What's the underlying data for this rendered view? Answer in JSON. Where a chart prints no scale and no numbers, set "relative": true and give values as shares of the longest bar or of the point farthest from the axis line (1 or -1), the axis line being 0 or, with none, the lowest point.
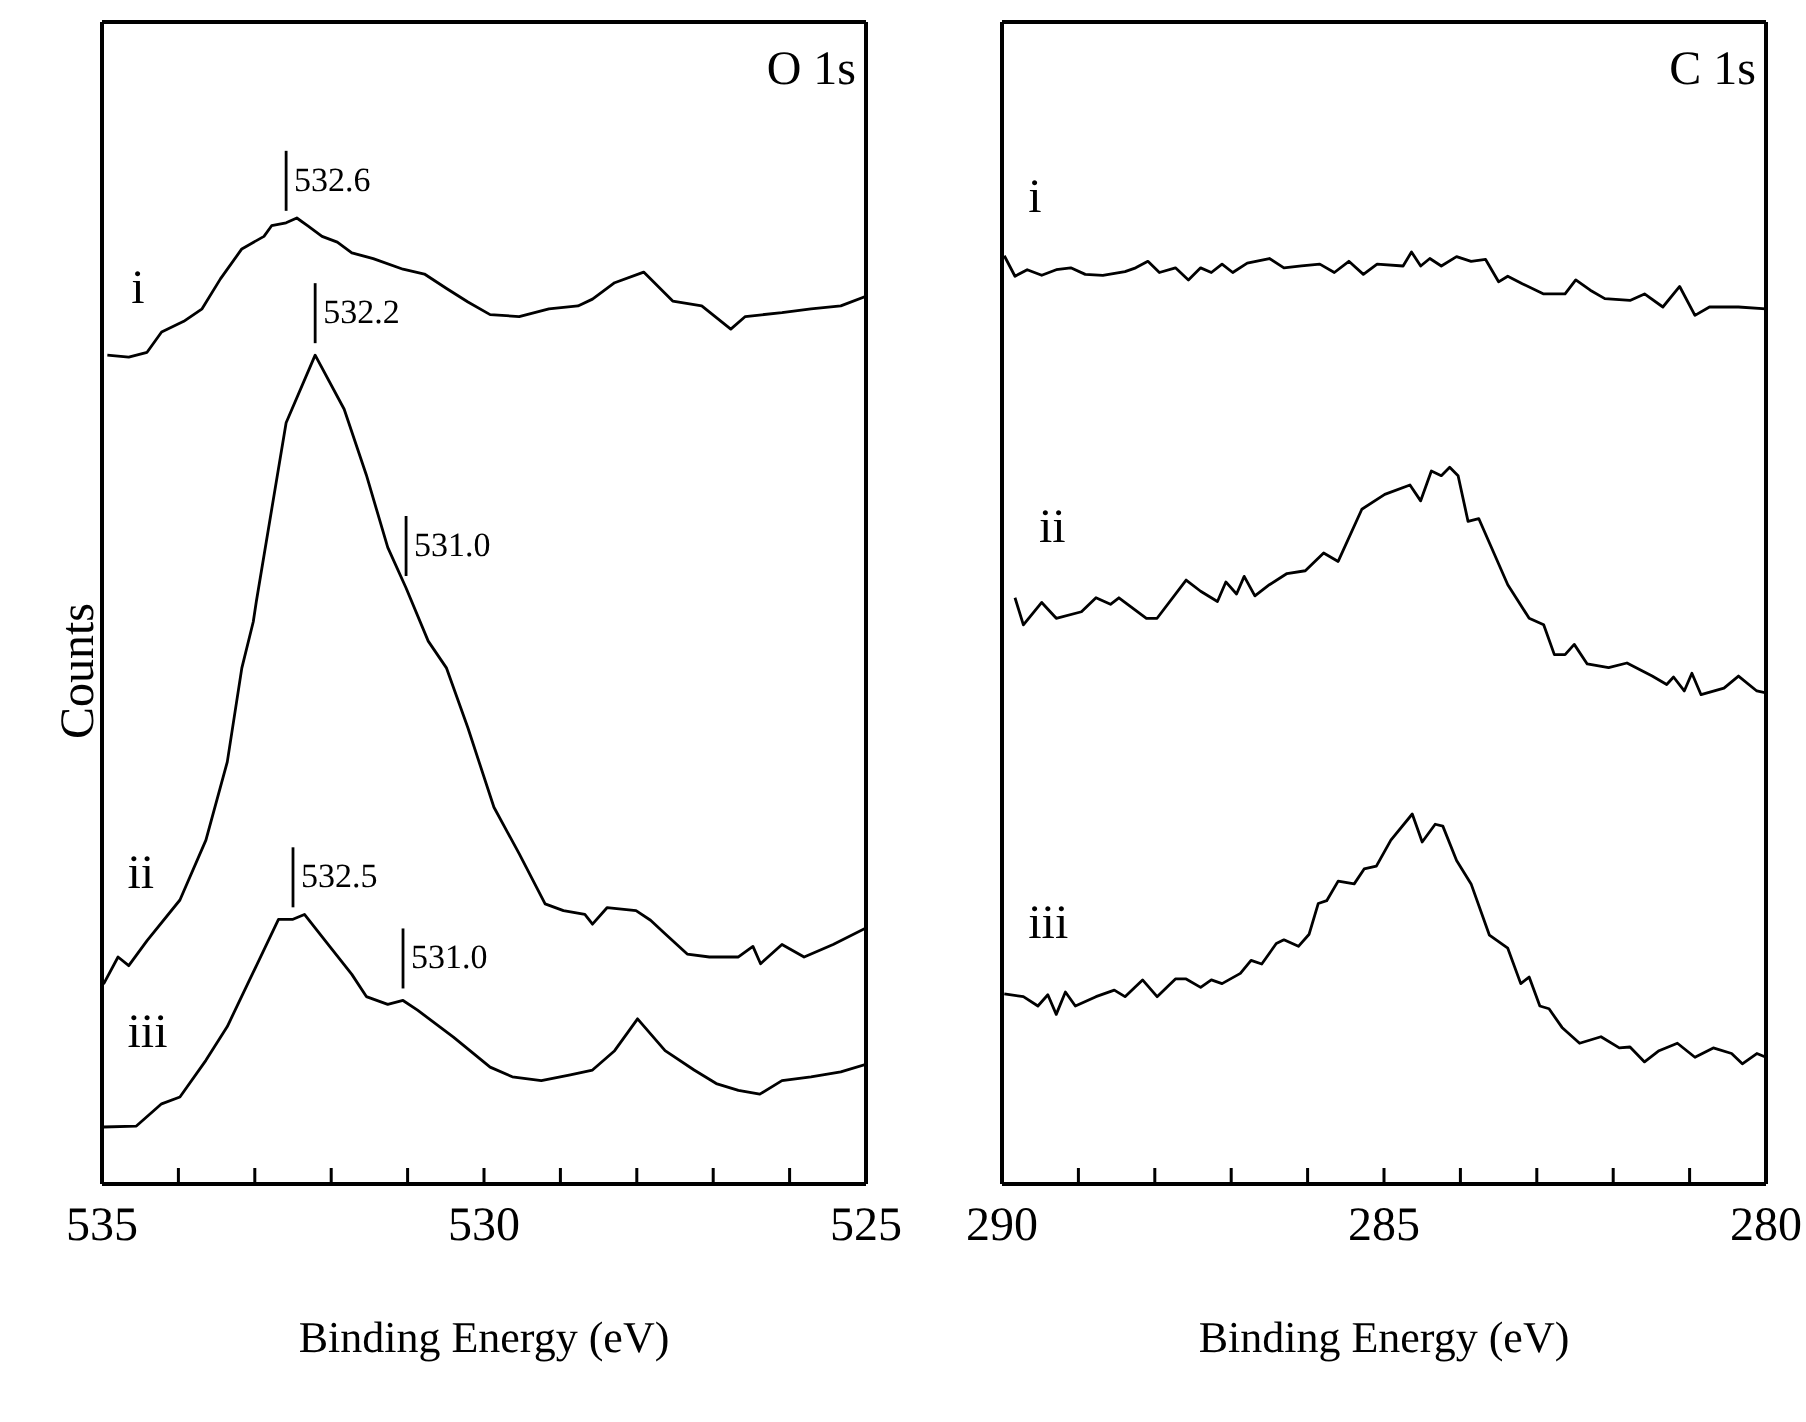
{
  "chart_data": [
    {
      "type": "line",
      "title": "O 1s",
      "xlabel": "Binding Energy (eV)",
      "ylabel": "Counts",
      "relative": true,
      "marker": "none",
      "xlim": [
        535,
        525
      ],
      "xticks": [
        535,
        {
          "value": 534,
          "label": null
        },
        {
          "value": 533,
          "label": null
        },
        {
          "value": 532,
          "label": null
        },
        {
          "value": 531,
          "label": null
        },
        530,
        {
          "value": 529,
          "label": null
        },
        {
          "value": 528,
          "label": null
        },
        {
          "value": 527,
          "label": null
        },
        {
          "value": 526,
          "label": null
        },
        525
      ],
      "annotations": [
        {
          "text": "532.6",
          "x": 532.59,
          "y": 0.995
        },
        {
          "text": "532.2",
          "x": 532.21,
          "y": 0.858
        },
        {
          "text": "531.0",
          "x": 531.02,
          "y": 0.617
        },
        {
          "text": "532.5",
          "x": 532.5,
          "y": 0.274
        },
        {
          "text": "531.0",
          "x": 531.06,
          "y": 0.19
        }
      ],
      "series": [
        {
          "name": "i",
          "color": "#000000",
          "x": [
            534.93,
            534.65,
            534.41,
            534.22,
            533.93,
            533.69,
            533.45,
            533.17,
            532.88,
            532.78,
            532.59,
            532.45,
            532.31,
            532.12,
            531.92,
            531.73,
            531.45,
            531.06,
            530.78,
            530.49,
            530.21,
            529.92,
            529.54,
            529.15,
            528.77,
            528.58,
            528.29,
            527.91,
            527.53,
            527.15,
            526.77,
            526.58,
            526.1,
            525.72,
            525.33,
            525.0
          ],
          "values": [
            0.858,
            0.856,
            0.861,
            0.882,
            0.893,
            0.906,
            0.937,
            0.968,
            0.981,
            0.992,
            0.995,
            1.0,
            0.992,
            0.981,
            0.975,
            0.964,
            0.958,
            0.947,
            0.942,
            0.927,
            0.913,
            0.9,
            0.898,
            0.906,
            0.909,
            0.916,
            0.933,
            0.944,
            0.914,
            0.909,
            0.885,
            0.898,
            0.902,
            0.906,
            0.909,
            0.919
          ]
        },
        {
          "name": "ii",
          "color": "#000000",
          "x": [
            534.98,
            534.79,
            534.65,
            534.41,
            533.98,
            533.64,
            533.36,
            533.17,
            533.02,
            532.98,
            532.59,
            532.21,
            531.83,
            531.54,
            531.26,
            531.02,
            530.73,
            530.49,
            530.21,
            529.87,
            529.54,
            529.2,
            528.96,
            528.68,
            528.58,
            528.39,
            528.01,
            527.82,
            527.63,
            527.34,
            527.05,
            526.67,
            526.48,
            526.38,
            526.1,
            525.81,
            525.43,
            525.0
          ],
          "values": [
            0.207,
            0.235,
            0.226,
            0.252,
            0.294,
            0.356,
            0.437,
            0.534,
            0.582,
            0.603,
            0.788,
            0.858,
            0.802,
            0.734,
            0.659,
            0.617,
            0.562,
            0.534,
            0.472,
            0.39,
            0.342,
            0.29,
            0.283,
            0.279,
            0.269,
            0.286,
            0.283,
            0.273,
            0.259,
            0.238,
            0.235,
            0.235,
            0.246,
            0.228,
            0.248,
            0.235,
            0.248,
            0.265
          ]
        },
        {
          "name": "iii",
          "color": "#000000",
          "x": [
            534.98,
            534.55,
            534.22,
            533.98,
            533.64,
            533.36,
            533.07,
            532.69,
            532.5,
            532.35,
            532.02,
            531.73,
            531.54,
            531.26,
            531.06,
            530.87,
            530.4,
            529.92,
            529.63,
            529.25,
            528.87,
            528.58,
            528.29,
            527.99,
            527.63,
            527.25,
            526.96,
            526.67,
            526.39,
            526.1,
            525.72,
            525.33,
            525.0
          ],
          "values": [
            0.059,
            0.06,
            0.083,
            0.09,
            0.128,
            0.163,
            0.211,
            0.274,
            0.274,
            0.279,
            0.246,
            0.217,
            0.194,
            0.186,
            0.19,
            0.18,
            0.152,
            0.121,
            0.111,
            0.107,
            0.113,
            0.118,
            0.138,
            0.171,
            0.138,
            0.118,
            0.104,
            0.097,
            0.093,
            0.107,
            0.111,
            0.116,
            0.124
          ]
        }
      ]
    },
    {
      "type": "line",
      "title": "C 1s",
      "xlabel": "Binding Energy (eV)",
      "relative": true,
      "marker": "none",
      "xlim": [
        290,
        280
      ],
      "xticks": [
        290,
        {
          "value": 289,
          "label": null
        },
        {
          "value": 288,
          "label": null
        },
        {
          "value": 287,
          "label": null
        },
        {
          "value": 286,
          "label": null
        },
        285,
        {
          "value": 284,
          "label": null
        },
        {
          "value": 283,
          "label": null
        },
        {
          "value": 282,
          "label": null
        },
        {
          "value": 281,
          "label": null
        },
        280
      ],
      "series": [
        {
          "name": "i",
          "color": "#000000",
          "x": [
            289.97,
            289.83,
            289.67,
            289.48,
            289.29,
            289.1,
            288.91,
            288.68,
            288.39,
            288.25,
            288.09,
            287.94,
            287.73,
            287.56,
            287.4,
            287.26,
            287.12,
            286.98,
            286.79,
            286.5,
            286.31,
            286.08,
            285.84,
            285.65,
            285.46,
            285.27,
            285.09,
            284.75,
            284.64,
            284.52,
            284.4,
            284.25,
            284.05,
            283.86,
            283.67,
            283.5,
            283.38,
            283.19,
            282.91,
            282.63,
            282.49,
            282.3,
            282.11,
            281.78,
            281.59,
            281.35,
            281.13,
            280.93,
            280.74,
            280.36,
            280.0
          ],
          "values": [
            0.996,
            0.974,
            0.981,
            0.975,
            0.981,
            0.983,
            0.976,
            0.975,
            0.979,
            0.983,
            0.99,
            0.978,
            0.983,
            0.97,
            0.983,
            0.978,
            0.987,
            0.978,
            0.988,
            0.993,
            0.983,
            0.985,
            0.987,
            0.978,
            0.99,
            0.976,
            0.987,
            0.985,
            1.0,
            0.985,
            0.993,
            0.985,
            0.995,
            0.99,
            0.992,
            0.968,
            0.974,
            0.966,
            0.955,
            0.955,
            0.97,
            0.959,
            0.95,
            0.948,
            0.955,
            0.941,
            0.963,
            0.932,
            0.941,
            0.941,
            0.939
          ]
        },
        {
          "name": "ii",
          "color": "#000000",
          "x": [
            289.83,
            289.72,
            289.48,
            289.29,
            288.96,
            288.77,
            288.58,
            288.47,
            288.11,
            287.97,
            287.59,
            287.4,
            287.18,
            287.07,
            286.93,
            286.83,
            286.69,
            286.5,
            286.27,
            286.03,
            285.79,
            285.6,
            285.29,
            284.99,
            284.66,
            284.52,
            284.38,
            284.25,
            284.14,
            284.03,
            283.9,
            283.76,
            283.38,
            283.1,
            282.91,
            282.77,
            282.63,
            282.51,
            282.34,
            282.06,
            281.82,
            281.49,
            281.3,
            281.21,
            281.07,
            280.97,
            280.85,
            280.55,
            280.36,
            280.12,
            280.0
          ],
          "values": [
            0.629,
            0.6,
            0.624,
            0.607,
            0.614,
            0.629,
            0.622,
            0.629,
            0.607,
            0.607,
            0.648,
            0.636,
            0.625,
            0.646,
            0.633,
            0.652,
            0.631,
            0.643,
            0.655,
            0.658,
            0.677,
            0.668,
            0.724,
            0.74,
            0.75,
            0.733,
            0.765,
            0.76,
            0.769,
            0.76,
            0.711,
            0.714,
            0.643,
            0.607,
            0.6,
            0.568,
            0.568,
            0.579,
            0.558,
            0.554,
            0.559,
            0.545,
            0.536,
            0.544,
            0.529,
            0.548,
            0.525,
            0.532,
            0.545,
            0.529,
            0.527
          ]
        },
        {
          "name": "iii",
          "color": "#000000",
          "x": [
            289.97,
            289.72,
            289.53,
            289.4,
            289.29,
            289.17,
            289.04,
            288.77,
            288.53,
            288.39,
            288.16,
            287.97,
            287.73,
            287.59,
            287.4,
            287.26,
            287.12,
            286.88,
            286.74,
            286.6,
            286.41,
            286.31,
            286.12,
            285.98,
            285.86,
            285.75,
            285.6,
            285.39,
            285.26,
            285.1,
            284.91,
            284.63,
            284.5,
            284.33,
            284.23,
            284.05,
            283.86,
            283.62,
            283.38,
            283.21,
            283.1,
            282.96,
            282.84,
            282.67,
            282.44,
            282.16,
            281.92,
            281.78,
            281.59,
            281.4,
            281.16,
            280.93,
            280.69,
            280.45,
            280.31,
            280.12,
            280.0
          ],
          "values": [
            0.204,
            0.201,
            0.191,
            0.203,
            0.182,
            0.206,
            0.191,
            0.201,
            0.208,
            0.201,
            0.219,
            0.201,
            0.22,
            0.22,
            0.211,
            0.219,
            0.215,
            0.226,
            0.24,
            0.236,
            0.258,
            0.262,
            0.255,
            0.268,
            0.301,
            0.304,
            0.325,
            0.322,
            0.338,
            0.341,
            0.369,
            0.397,
            0.367,
            0.386,
            0.384,
            0.347,
            0.322,
            0.267,
            0.253,
            0.215,
            0.222,
            0.191,
            0.188,
            0.168,
            0.151,
            0.158,
            0.146,
            0.147,
            0.131,
            0.143,
            0.151,
            0.136,
            0.146,
            0.14,
            0.129,
            0.14,
            0.136
          ]
        }
      ]
    }
  ]
}
